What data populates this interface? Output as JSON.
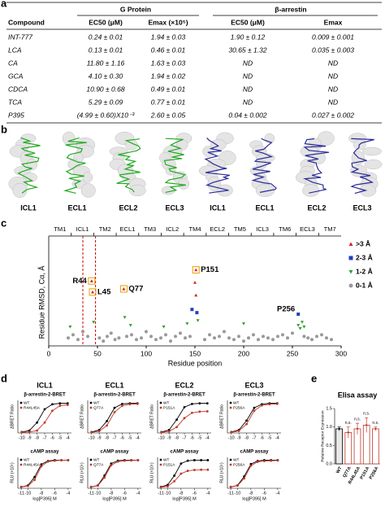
{
  "panel_labels": [
    "a",
    "b",
    "c",
    "d",
    "e"
  ],
  "table": {
    "group_headers": [
      "G Protein",
      "β-arrestin"
    ],
    "columns": [
      "Compound",
      "EC50 (μM)",
      "Emax (×10⁵)",
      "EC50 (μM)",
      "Emax"
    ],
    "rows": [
      [
        "INT-777",
        "0.24 ± 0.01",
        "1.94 ± 0.03",
        "1.90 ± 0.12",
        "0.009 ± 0.001"
      ],
      [
        "LCA",
        "0.13 ± 0.01",
        "0.46 ± 0.01",
        "30.65 ± 1.32",
        "0.035 ± 0.003"
      ],
      [
        "CA",
        "11.80 ± 1.16",
        "1.63 ± 0.03",
        "ND",
        "ND"
      ],
      [
        "GCA",
        "4.10 ± 0.30",
        "1.94 ± 0.02",
        "ND",
        "ND"
      ],
      [
        "CDCA",
        "10.90 ± 0.68",
        "0.49 ± 0.01",
        "ND",
        "ND"
      ],
      [
        "TCA",
        "5.29 ± 0.09",
        "0.77 ± 0.01",
        "ND",
        "ND"
      ],
      [
        "P395",
        "(4.99 ± 0.60)X10⁻³",
        "2.60 ± 0.05",
        "0.04 ± 0.002",
        "0.027 ± 0.002"
      ]
    ]
  },
  "structure_labels": [
    "ICL1",
    "ECL1",
    "ECL2",
    "ECL3",
    "ICL1",
    "ECL1",
    "ECL2",
    "ECL3"
  ],
  "structure_colors": [
    "#22aa22",
    "#22aa22",
    "#22aa22",
    "#22aa22",
    "#2a2a99",
    "#2a2a99",
    "#2a2a99",
    "#2a2a99"
  ],
  "chart_data": [
    {
      "type": "scatter",
      "xlabel": "Residue position",
      "ylabel": "Residue RMSD, Cα, Å",
      "xlim": [
        0,
        300
      ],
      "xticks": [
        0,
        50,
        100,
        150,
        200,
        250,
        300
      ],
      "ylim": [
        0,
        5.5
      ],
      "segments": [
        {
          "label": "TM1",
          "color": "#000000"
        },
        {
          "label": "ICL1",
          "color": "#cc0000"
        },
        {
          "label": "TM2",
          "color": "#000000"
        },
        {
          "label": "ECL1",
          "color": "#cc0000"
        },
        {
          "label": "TM3",
          "color": "#000000"
        },
        {
          "label": "ICL2",
          "color": "#000000"
        },
        {
          "label": "TM4",
          "color": "#000000"
        },
        {
          "label": "ECL2",
          "color": "#cc0000"
        },
        {
          "label": "TM5",
          "color": "#000000"
        },
        {
          "label": "ICL3",
          "color": "#000000"
        },
        {
          "label": "TM6",
          "color": "#000000"
        },
        {
          "label": "ECL3",
          "color": "#cc0000"
        },
        {
          "label": "TM7",
          "color": "#000000"
        }
      ],
      "reference_lines_x": [
        35,
        48
      ],
      "series": [
        {
          "name": ">3 Å",
          "color": "#d62020",
          "marker": "triangle",
          "x": [
            44,
            45,
            77,
            151,
            150,
            151
          ],
          "values": [
            4.1,
            3.4,
            3.6,
            4.8,
            4.0,
            3.2
          ],
          "point_labels": [
            "R44",
            "L45",
            "Q77",
            "P151",
            null,
            null
          ]
        },
        {
          "name": "2-3 Å",
          "color": "#1f3fbf",
          "marker": "square",
          "x": [
            147,
            152,
            256
          ],
          "values": [
            2.3,
            2.1,
            2.0
          ],
          "point_labels": [
            null,
            null,
            "P256"
          ]
        },
        {
          "name": "1-2 Å",
          "color": "#2ca02c",
          "marker": "triangle-down",
          "x": [
            22,
            46,
            78,
            84,
            118,
            142,
            153,
            200,
            256,
            258,
            260,
            262
          ],
          "values": [
            1.2,
            1.5,
            1.8,
            1.3,
            1.2,
            1.4,
            1.6,
            1.4,
            1.3,
            1.1,
            1.5,
            1.2
          ]
        },
        {
          "name": "0-1 Å",
          "color": "#999999",
          "marker": "circle",
          "x": [
            20,
            25,
            30,
            35,
            40,
            52,
            56,
            60,
            64,
            68,
            72,
            80,
            85,
            90,
            95,
            100,
            105,
            110,
            115,
            120,
            125,
            130,
            135,
            140,
            145,
            160,
            165,
            170,
            175,
            180,
            185,
            190,
            195,
            200,
            205,
            210,
            215,
            220,
            225,
            230,
            235,
            240,
            245,
            250,
            262,
            266,
            270,
            275,
            280,
            285,
            290
          ],
          "values": [
            0.5,
            0.7,
            0.4,
            0.9,
            0.6,
            0.5,
            0.3,
            0.6,
            0.8,
            0.4,
            0.5,
            0.6,
            0.7,
            0.4,
            0.5,
            0.9,
            0.6,
            0.4,
            0.5,
            0.7,
            0.3,
            0.6,
            0.8,
            0.5,
            0.6,
            0.4,
            0.7,
            0.5,
            0.6,
            0.9,
            0.5,
            0.4,
            0.6,
            0.3,
            0.5,
            0.7,
            0.4,
            0.6,
            0.5,
            0.4,
            0.6,
            0.7,
            0.5,
            0.8,
            0.6,
            0.5,
            0.4,
            0.6,
            0.7,
            0.5,
            0.4
          ]
        }
      ]
    },
    {
      "type": "line",
      "title": "ICL1",
      "subtitle": "β-arrestin-2-BRET",
      "ylabel": "ΔBRET Ratio",
      "x": [
        -10,
        -9,
        -8,
        -7,
        -6,
        -5,
        -4
      ],
      "xlim": [
        -10.5,
        -3.5
      ],
      "xticks": [
        -10,
        -9,
        -8,
        -7,
        -6,
        -5,
        -4
      ],
      "ylim": [
        0,
        1.1
      ],
      "series": [
        {
          "name": "WT",
          "color": "#000000",
          "values": [
            0.03,
            0.08,
            0.35,
            0.8,
            0.97,
            1.0,
            1.0
          ]
        },
        {
          "name": "R44L45A",
          "color": "#c0392b",
          "values": [
            0.02,
            0.03,
            0.08,
            0.35,
            0.75,
            0.92,
            0.95
          ]
        }
      ]
    },
    {
      "type": "line",
      "title": "ECL1",
      "subtitle": "β-arrestin-2-BRET",
      "ylabel": "ΔBRET Ratio",
      "x": [
        -10,
        -9,
        -8,
        -7,
        -6,
        -5,
        -4
      ],
      "xlim": [
        -10.5,
        -3.5
      ],
      "xticks": [
        -10,
        -9,
        -8,
        -7,
        -6,
        -5,
        -4
      ],
      "ylim": [
        0,
        1.1
      ],
      "series": [
        {
          "name": "WT",
          "color": "#000000",
          "values": [
            0.03,
            0.1,
            0.4,
            0.85,
            0.98,
            1.0,
            1.0
          ]
        },
        {
          "name": "Q77A",
          "color": "#c0392b",
          "values": [
            0.02,
            0.06,
            0.25,
            0.7,
            0.92,
            0.97,
            0.98
          ]
        }
      ]
    },
    {
      "type": "line",
      "title": "ECL2",
      "subtitle": "β-arrestin-2-BRET",
      "ylabel": "ΔBRET Ratio",
      "x": [
        -10,
        -9,
        -8,
        -7,
        -6,
        -5,
        -4
      ],
      "xlim": [
        -10.5,
        -3.5
      ],
      "xticks": [
        -10,
        -9,
        -8,
        -7,
        -6,
        -5,
        -4
      ],
      "ylim": [
        0,
        1.1
      ],
      "series": [
        {
          "name": "WT",
          "color": "#000000",
          "values": [
            0.03,
            0.1,
            0.45,
            0.87,
            0.98,
            1.0,
            1.0
          ]
        },
        {
          "name": "P151A",
          "color": "#c0392b",
          "values": [
            0.02,
            0.05,
            0.2,
            0.5,
            0.68,
            0.72,
            0.73
          ]
        }
      ]
    },
    {
      "type": "line",
      "title": "ECL3",
      "subtitle": "β-arrestin-2-BRET",
      "ylabel": "ΔBRET Ratio",
      "x": [
        -10,
        -9,
        -8,
        -7,
        -6,
        -5,
        -4
      ],
      "xlim": [
        -10.5,
        -3.5
      ],
      "xticks": [
        -10,
        -9,
        -8,
        -7,
        -6,
        -5,
        -4
      ],
      "ylim": [
        0,
        1.1
      ],
      "series": [
        {
          "name": "WT",
          "color": "#000000",
          "values": [
            0.03,
            0.1,
            0.42,
            0.85,
            0.97,
            1.0,
            1.0
          ]
        },
        {
          "name": "P256A",
          "color": "#c0392b",
          "values": [
            0.02,
            0.07,
            0.3,
            0.75,
            0.93,
            0.97,
            0.98
          ]
        }
      ]
    },
    {
      "type": "line",
      "subtitle": "cAMP assay",
      "ylabel": "RLU (×10⁵)",
      "xlabel": "log[P395] M",
      "x": [
        -11,
        -10,
        -9,
        -8,
        -7,
        -6,
        -5,
        -4
      ],
      "xlim": [
        -11.5,
        -3.5
      ],
      "xticks": [
        -11,
        -10,
        -8,
        -6,
        -4
      ],
      "ylim": [
        0,
        1.1
      ],
      "series": [
        {
          "name": "WT",
          "color": "#000000",
          "values": [
            0.05,
            0.1,
            0.4,
            0.85,
            0.97,
            1.0,
            1.0,
            1.0
          ]
        },
        {
          "name": "R44L45A",
          "color": "#c0392b",
          "values": [
            0.05,
            0.08,
            0.3,
            0.78,
            0.95,
            0.98,
            1.0,
            1.0
          ]
        }
      ]
    },
    {
      "type": "line",
      "subtitle": "cAMP assay",
      "ylabel": "RLU (×10⁵)",
      "xlabel": "log[P395] M",
      "x": [
        -11,
        -10,
        -9,
        -8,
        -7,
        -6,
        -5,
        -4
      ],
      "xlim": [
        -11.5,
        -3.5
      ],
      "xticks": [
        -11,
        -10,
        -8,
        -6,
        -4
      ],
      "ylim": [
        0,
        1.1
      ],
      "series": [
        {
          "name": "WT",
          "color": "#000000",
          "values": [
            0.05,
            0.1,
            0.45,
            0.88,
            0.98,
            1.0,
            1.0,
            1.0
          ]
        },
        {
          "name": "Q77A",
          "color": "#c0392b",
          "values": [
            0.05,
            0.09,
            0.38,
            0.82,
            0.95,
            0.98,
            0.99,
            1.0
          ]
        }
      ]
    },
    {
      "type": "line",
      "subtitle": "cAMP assay",
      "ylabel": "RLU (×10⁵)",
      "xlabel": "log[P395] M",
      "x": [
        -11,
        -10,
        -9,
        -8,
        -7,
        -6,
        -5,
        -4
      ],
      "xlim": [
        -11.5,
        -3.5
      ],
      "xticks": [
        -11,
        -10,
        -8,
        -6,
        -4
      ],
      "ylim": [
        0,
        1.1
      ],
      "series": [
        {
          "name": "WT",
          "color": "#000000",
          "values": [
            0.05,
            0.12,
            0.45,
            0.88,
            0.98,
            1.0,
            1.0,
            1.0
          ]
        },
        {
          "name": "P151A",
          "color": "#c0392b",
          "values": [
            0.04,
            0.07,
            0.25,
            0.52,
            0.62,
            0.65,
            0.66,
            0.66
          ]
        }
      ]
    },
    {
      "type": "line",
      "subtitle": "cAMP assay",
      "ylabel": "RLU (×10⁵)",
      "xlabel": "log[P395] M",
      "x": [
        -11,
        -10,
        -9,
        -8,
        -7,
        -6,
        -5,
        -4
      ],
      "xlim": [
        -11.5,
        -3.5
      ],
      "xticks": [
        -11,
        -10,
        -8,
        -6,
        -4
      ],
      "ylim": [
        0,
        1.1
      ],
      "series": [
        {
          "name": "WT",
          "color": "#000000",
          "values": [
            0.05,
            0.1,
            0.42,
            0.86,
            0.97,
            1.0,
            1.0,
            1.0
          ]
        },
        {
          "name": "P256A",
          "color": "#c0392b",
          "values": [
            0.05,
            0.09,
            0.35,
            0.8,
            0.94,
            0.97,
            0.98,
            0.99
          ]
        }
      ]
    },
    {
      "type": "bar",
      "title": "Elisa assay",
      "ylabel": "Relative Receptor Expression",
      "categories": [
        "WT",
        "Q77A",
        "R44L45A",
        "P151A",
        "P256A"
      ],
      "values": [
        0.95,
        0.85,
        0.95,
        1.05,
        0.95
      ],
      "errors": [
        0.05,
        0.15,
        0.15,
        0.2,
        0.05
      ],
      "colors": [
        "#000000",
        "#c0392b",
        "#c0392b",
        "#c0392b",
        "#c0392b"
      ],
      "significance": [
        null,
        "n.s.",
        "n.s.",
        "n.s.",
        "n.s."
      ],
      "ylim": [
        0,
        1.5
      ],
      "yticks": [
        {
          "value": 0,
          "label": "0.0"
        },
        {
          "value": 0.5,
          "label": "0.5"
        },
        {
          "value": 1,
          "label": "1.0"
        },
        {
          "value": 1.5,
          "label": "1.5"
        }
      ]
    }
  ]
}
